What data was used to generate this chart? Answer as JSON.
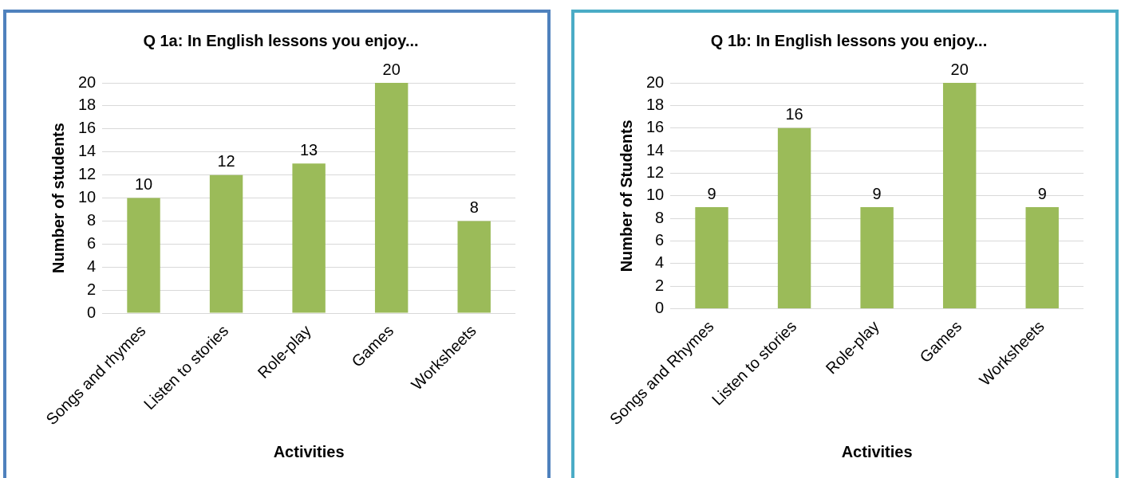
{
  "chart_data": [
    {
      "type": "bar",
      "title": "Q 1a: In English lessons you enjoy...",
      "xlabel": "Activities",
      "ylabel": "Number of students",
      "categories": [
        "Songs and rhymes",
        "Listen to stories",
        "Role-play",
        "Games",
        "Worksheets"
      ],
      "values": [
        10,
        12,
        13,
        20,
        8
      ],
      "color": "#9bbb59",
      "ylim": [
        0,
        20
      ],
      "yticks": [
        0,
        2,
        4,
        6,
        8,
        10,
        12,
        14,
        16,
        18,
        20
      ],
      "grid": "y",
      "data_labels": true
    },
    {
      "type": "bar",
      "title": "Q 1b: In English lessons you enjoy...",
      "xlabel": "Activities",
      "ylabel": "Number of Students",
      "categories": [
        "Songs and Rhymes",
        "Listen to stories",
        "Role-play",
        "Games",
        "Worksheets"
      ],
      "values": [
        9,
        16,
        9,
        20,
        9
      ],
      "color": "#9bbb59",
      "ylim": [
        0,
        20
      ],
      "yticks": [
        0,
        2,
        4,
        6,
        8,
        10,
        12,
        14,
        16,
        18,
        20
      ],
      "grid": "y",
      "data_labels": true
    }
  ]
}
